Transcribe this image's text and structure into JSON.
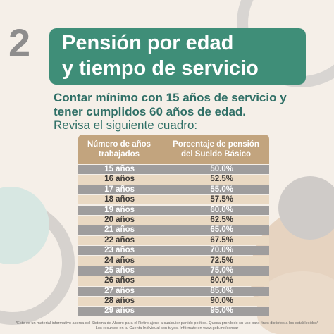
{
  "header": {
    "number": "2",
    "title_line1": "Pensión por edad",
    "title_line2": "y tiempo de servicio"
  },
  "intro": {
    "line1": "Contar mínimo con 15 años de servicio y",
    "line2": "tener cumplidos 60 años de edad.",
    "line3": "Revisa el siguiente cuadro:"
  },
  "table": {
    "headers": [
      {
        "line1": "Número de años",
        "line2": "trabajados"
      },
      {
        "line1": "Porcentaje de pensión",
        "line2": "del Sueldo Básico"
      }
    ],
    "rows": [
      {
        "years": "15 años",
        "percent": "50.0%"
      },
      {
        "years": "16 años",
        "percent": "52.5%"
      },
      {
        "years": "17 años",
        "percent": "55.0%"
      },
      {
        "years": "18 años",
        "percent": "57.5%"
      },
      {
        "years": "19 años",
        "percent": "60.0%"
      },
      {
        "years": "20 años",
        "percent": "62.5%"
      },
      {
        "years": "21 años",
        "percent": "65.0%"
      },
      {
        "years": "22 años",
        "percent": "67.5%"
      },
      {
        "years": "23 años",
        "percent": "70.0%"
      },
      {
        "years": "24 años",
        "percent": "72.5%"
      },
      {
        "years": "25 años",
        "percent": "75.0%"
      },
      {
        "years": "26 años",
        "percent": "80.0%"
      },
      {
        "years": "27 años",
        "percent": "85.0%"
      },
      {
        "years": "28 años",
        "percent": "90.0%"
      },
      {
        "years": "29 años",
        "percent": "95.0%"
      }
    ]
  },
  "footer": {
    "line1": "*Este es un material informativo acerca del Sistema de Ahorro para el Retiro ajeno a cualquier partido político. Queda prohibido su uso para fines distintos a los establecidos*",
    "line2": "Los recursos en tu Cuenta Individual son tuyos. Infórmate en www.gob.mx/consar"
  },
  "colors": {
    "background": "#f5efe8",
    "title_green": "#3f8e78",
    "header_tan": "#c2a47e",
    "row_grey": "#9f9d9d",
    "row_beige": "#ead9c3",
    "text_teal": "#2f6f66"
  }
}
